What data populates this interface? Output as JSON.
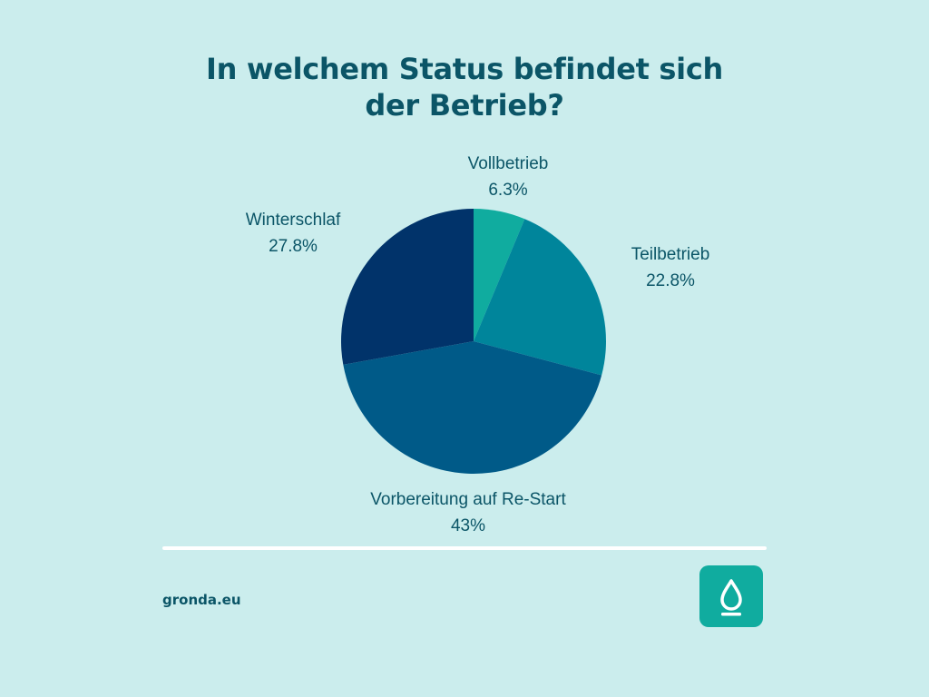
{
  "title_lines": [
    "In welchem Status befindet sich",
    "der Betrieb?"
  ],
  "chart_data": {
    "type": "pie",
    "title": "In welchem Status befindet sich der Betrieb?",
    "slices": [
      {
        "label": "Vollbetrieb",
        "value": 6.3,
        "value_label": "6.3%",
        "color": "#10ac9f"
      },
      {
        "label": "Teilbetrieb",
        "value": 22.8,
        "value_label": "22.8%",
        "color": "#00859b"
      },
      {
        "label": "Vorbereitung auf Re-Start",
        "value": 43,
        "value_label": "43%",
        "color": "#005a88"
      },
      {
        "label": "Winterschlaf",
        "value": 27.8,
        "value_label": "27.8%",
        "color": "#01336a"
      }
    ],
    "start_angle_deg": 0,
    "direction": "clockwise",
    "legend": "none"
  },
  "footer": {
    "website": "gronda.eu",
    "logo_icon": "droplet-icon",
    "logo_color": "#10ac9f"
  }
}
